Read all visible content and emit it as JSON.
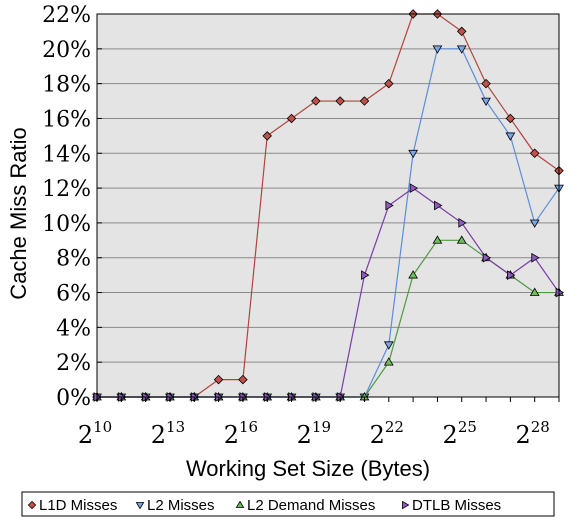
{
  "chart_data": {
    "type": "line",
    "xlabel": "Working Set Size (Bytes)",
    "ylabel": "Cache Miss Ratio",
    "x_scale": "log2",
    "x": [
      10,
      11,
      12,
      13,
      14,
      15,
      16,
      17,
      18,
      19,
      20,
      21,
      22,
      23,
      24,
      25,
      26,
      27,
      28,
      29
    ],
    "x_ticks": [
      {
        "base": "2",
        "exp": "10",
        "value": 10
      },
      {
        "base": "2",
        "exp": "13",
        "value": 13
      },
      {
        "base": "2",
        "exp": "16",
        "value": 16
      },
      {
        "base": "2",
        "exp": "19",
        "value": 19
      },
      {
        "base": "2",
        "exp": "22",
        "value": 22
      },
      {
        "base": "2",
        "exp": "25",
        "value": 25
      },
      {
        "base": "2",
        "exp": "28",
        "value": 28
      }
    ],
    "xlim": [
      10,
      29
    ],
    "ylim": [
      0,
      22
    ],
    "y_ticks": [
      {
        "value": 0,
        "label": "0%"
      },
      {
        "value": 2,
        "label": "2%"
      },
      {
        "value": 4,
        "label": "4%"
      },
      {
        "value": 6,
        "label": "6%"
      },
      {
        "value": 8,
        "label": "8%"
      },
      {
        "value": 10,
        "label": "10%"
      },
      {
        "value": 12,
        "label": "12%"
      },
      {
        "value": 14,
        "label": "14%"
      },
      {
        "value": 16,
        "label": "16%"
      },
      {
        "value": 18,
        "label": "18%"
      },
      {
        "value": 20,
        "label": "20%"
      },
      {
        "value": 22,
        "label": "22%"
      }
    ],
    "grid": true,
    "legend_position": "bottom",
    "plot_background": "#e4e4e4",
    "series": [
      {
        "name": "L1D Misses",
        "marker": "diamond",
        "color": "#b0453c",
        "marker_color": "#c0504a",
        "values": [
          0,
          0,
          0,
          0,
          0,
          1,
          1,
          15,
          16,
          17,
          17,
          17,
          18,
          22,
          22,
          21,
          18,
          16,
          14,
          13
        ]
      },
      {
        "name": "L2 Misses",
        "marker": "triangle-down",
        "color": "#5b8ed8",
        "marker_color": "#7aa5e8",
        "values": [
          0,
          0,
          0,
          0,
          0,
          0,
          0,
          0,
          0,
          0,
          0,
          0,
          3,
          14,
          20,
          20,
          17,
          15,
          10,
          12
        ]
      },
      {
        "name": "L2 Demand Misses",
        "marker": "triangle-up",
        "color": "#4e9a40",
        "marker_color": "#6cbf5a",
        "values": [
          0,
          0,
          0,
          0,
          0,
          0,
          0,
          0,
          0,
          0,
          0,
          0,
          2,
          7,
          9,
          9,
          8,
          7,
          6,
          6
        ]
      },
      {
        "name": "DTLB Misses",
        "marker": "triangle-right",
        "color": "#7a3ca6",
        "marker_color": "#8f5ac0",
        "values": [
          0,
          0,
          0,
          0,
          0,
          0,
          0,
          0,
          0,
          0,
          0,
          7,
          11,
          12,
          11,
          10,
          8,
          7,
          8,
          6
        ]
      }
    ]
  }
}
